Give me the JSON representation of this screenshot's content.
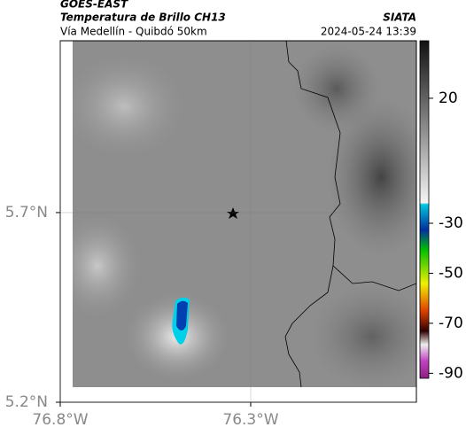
{
  "header": {
    "satellite": "GOES-EAST",
    "product": "Temperatura de Brillo CH13",
    "source": "SIATA",
    "subtitle": "Vía Medellín - Quibdó 50km",
    "timestamp": "2024-05-24 13:39"
  },
  "map": {
    "xlim": [
      -76.8,
      -75.865
    ],
    "ylim": [
      5.2,
      6.153
    ],
    "xticks": [
      {
        "value": -76.8,
        "label": "76.8°W"
      },
      {
        "value": -76.3,
        "label": "76.3°W"
      }
    ],
    "yticks": [
      {
        "value": 5.2,
        "label": "5.2°N"
      },
      {
        "value": 5.7,
        "label": "5.7°N"
      }
    ],
    "grid": true,
    "colorbar": {
      "clim": [
        -92,
        43
      ],
      "ticks": [
        20,
        -30,
        -50,
        -70,
        -90
      ]
    }
  }
}
